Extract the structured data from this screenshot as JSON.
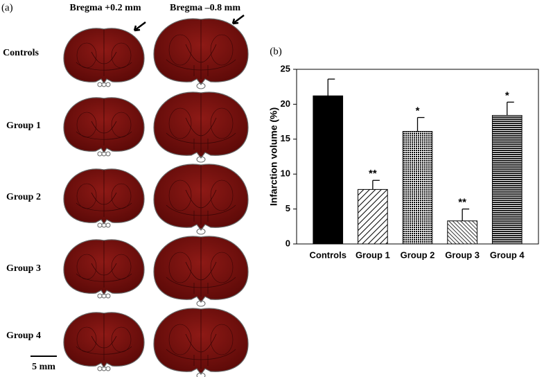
{
  "panel_a": {
    "label": "(a)",
    "columns": [
      "Bregma +0.2 mm",
      "Bregma –0.8 mm"
    ],
    "rows": [
      "Controls",
      "Group 1",
      "Group 2",
      "Group 3",
      "Group 4"
    ],
    "scale_bar": "5 mm"
  },
  "chart_data": {
    "type": "bar",
    "panel_label": "(b)",
    "ylabel": "Infarction volume (%)",
    "categories": [
      "Controls",
      "Group 1",
      "Group 2",
      "Group 3",
      "Group 4"
    ],
    "values": [
      21.2,
      7.8,
      16.1,
      3.3,
      18.4
    ],
    "errors": [
      2.4,
      1.3,
      2.0,
      1.7,
      1.9
    ],
    "value_labels": [
      null,
      "**",
      "*",
      "**",
      "*"
    ],
    "fills": [
      "solid",
      "hatch",
      "dots",
      "hatch-dense",
      "lines"
    ],
    "color": "#000000",
    "ylim": [
      0,
      25
    ],
    "yticks": [
      0,
      5,
      10,
      15,
      20,
      25
    ],
    "grid": false
  }
}
